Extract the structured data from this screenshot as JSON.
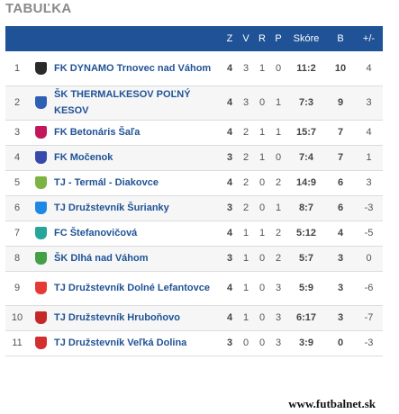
{
  "title": "TABUĽKA",
  "headers": {
    "z": "Z",
    "v": "V",
    "r": "R",
    "p": "P",
    "skore": "Skóre",
    "b": "B",
    "diff": "+/-"
  },
  "rows": [
    {
      "pos": "1",
      "team": "FK DYNAMO Trnovec nad Váhom",
      "z": "4",
      "v": "3",
      "r": "1",
      "p": "0",
      "skore": "11:2",
      "b": "10",
      "diff": "4",
      "crest_color": "#2a2a2a",
      "crest_icon": "dynamo-crest-icon",
      "tall": true
    },
    {
      "pos": "2",
      "team": "ŠK THERMALKESOV POĽNÝ KESOV",
      "z": "4",
      "v": "3",
      "r": "0",
      "p": "1",
      "skore": "7:3",
      "b": "9",
      "diff": "3",
      "crest_color": "#2d5fb5",
      "crest_icon": "thermalkesov-crest-icon",
      "tall": true
    },
    {
      "pos": "3",
      "team": "FK Betonáris Šaľa",
      "z": "4",
      "v": "2",
      "r": "1",
      "p": "1",
      "skore": "15:7",
      "b": "7",
      "diff": "4",
      "crest_color": "#c2185b",
      "crest_icon": "betonaris-crest-icon",
      "tall": false
    },
    {
      "pos": "4",
      "team": "FK Močenok",
      "z": "3",
      "v": "2",
      "r": "1",
      "p": "0",
      "skore": "7:4",
      "b": "7",
      "diff": "1",
      "crest_color": "#3949ab",
      "crest_icon": "mocenok-crest-icon",
      "tall": false
    },
    {
      "pos": "5",
      "team": "TJ - Termál - Diakovce",
      "z": "4",
      "v": "2",
      "r": "0",
      "p": "2",
      "skore": "14:9",
      "b": "6",
      "diff": "3",
      "crest_color": "#7cb342",
      "crest_icon": "termal-crest-icon",
      "tall": false
    },
    {
      "pos": "6",
      "team": "TJ Družstevník Šurianky",
      "z": "3",
      "v": "2",
      "r": "0",
      "p": "1",
      "skore": "8:7",
      "b": "6",
      "diff": "-3",
      "crest_color": "#1e88e5",
      "crest_icon": "surianky-crest-icon",
      "tall": false
    },
    {
      "pos": "7",
      "team": "FC Štefanovičová",
      "z": "4",
      "v": "1",
      "r": "1",
      "p": "2",
      "skore": "5:12",
      "b": "4",
      "diff": "-5",
      "crest_color": "#26a69a",
      "crest_icon": "stefanovicova-crest-icon",
      "tall": false
    },
    {
      "pos": "8",
      "team": "ŠK Dlhá nad Váhom",
      "z": "3",
      "v": "1",
      "r": "0",
      "p": "2",
      "skore": "5:7",
      "b": "3",
      "diff": "0",
      "crest_color": "#43a047",
      "crest_icon": "dlha-crest-icon",
      "tall": false
    },
    {
      "pos": "9",
      "team": "TJ Družstevník Dolné Lefantovce",
      "z": "4",
      "v": "1",
      "r": "0",
      "p": "3",
      "skore": "5:9",
      "b": "3",
      "diff": "-6",
      "crest_color": "#e53935",
      "crest_icon": "lefantovce-crest-icon",
      "tall": true
    },
    {
      "pos": "10",
      "team": "TJ Družstevník Hruboňovo",
      "z": "4",
      "v": "1",
      "r": "0",
      "p": "3",
      "skore": "6:17",
      "b": "3",
      "diff": "-7",
      "crest_color": "#c62828",
      "crest_icon": "hrubonovo-crest-icon",
      "tall": false
    },
    {
      "pos": "11",
      "team": "TJ Družstevník Veľká Dolina",
      "z": "3",
      "v": "0",
      "r": "0",
      "p": "3",
      "skore": "3:9",
      "b": "0",
      "diff": "-3",
      "crest_color": "#d32f2f",
      "crest_icon": "velka-dolina-crest-icon",
      "tall": false
    }
  ],
  "footer": "www.futbalnet.sk"
}
